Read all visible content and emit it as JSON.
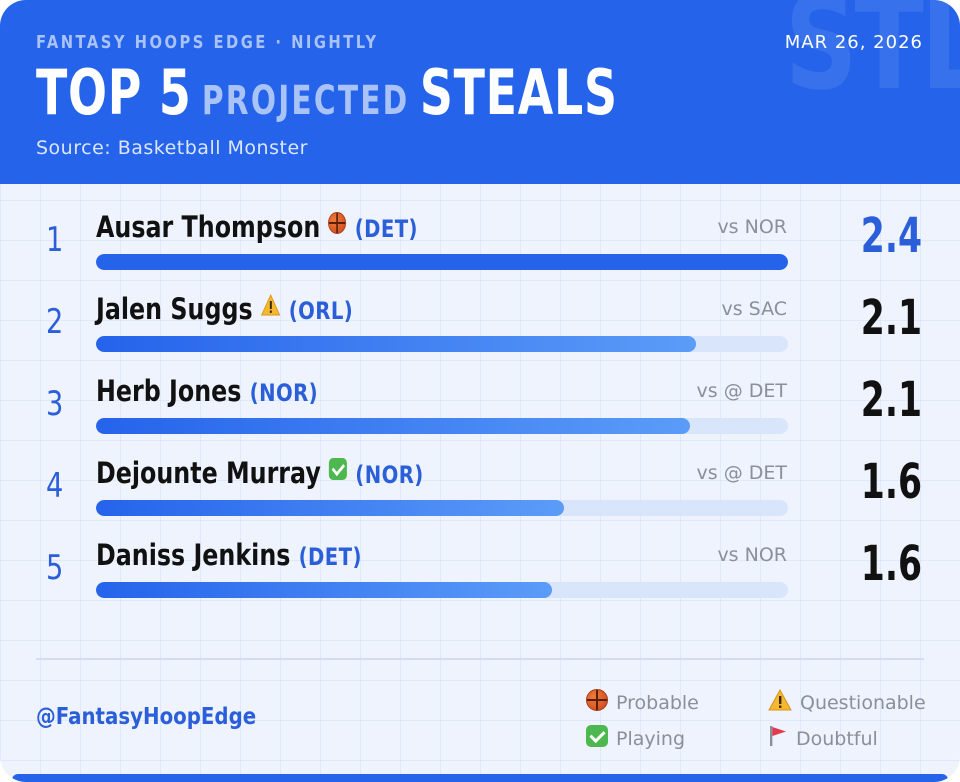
{
  "header": {
    "kicker": "FANTASY HOOPS EDGE · NIGHTLY",
    "date": "MAR 26, 2026",
    "title_part1": "TOP 5",
    "title_part2": "PROJECTED",
    "title_part3": "STEALS",
    "source": "Source: Basketball Monster",
    "watermark": "STL"
  },
  "scale_max": 2.4,
  "players": [
    {
      "rank": "1",
      "name": "Ausar Thompson",
      "status_icon": "basketball-icon",
      "team": "(DET)",
      "opponent": "vs NOR",
      "value": "2.4",
      "bar_fraction": 1.0
    },
    {
      "rank": "2",
      "name": "Jalen Suggs",
      "status_icon": "warning-icon",
      "team": "(ORL)",
      "opponent": "vs SAC",
      "value": "2.1",
      "bar_fraction": 0.867
    },
    {
      "rank": "3",
      "name": "Herb Jones",
      "status_icon": "",
      "team": "(NOR)",
      "opponent": "vs @ DET",
      "value": "2.1",
      "bar_fraction": 0.858
    },
    {
      "rank": "4",
      "name": "Dejounte Murray",
      "status_icon": "check-icon",
      "team": "(NOR)",
      "opponent": "vs @ DET",
      "value": "1.6",
      "bar_fraction": 0.676
    },
    {
      "rank": "5",
      "name": "Daniss Jenkins",
      "status_icon": "",
      "team": "(DET)",
      "opponent": "vs NOR",
      "value": "1.6",
      "bar_fraction": 0.659
    }
  ],
  "footer": {
    "handle": "@FantasyHoopEdge",
    "legend": {
      "probable": "Probable",
      "questionable": "Questionable",
      "playing": "Playing",
      "doubtful": "Doubtful"
    }
  },
  "colors": {
    "brand_blue": "#2563eb",
    "accent_text": "#2b5fd9",
    "bar_track": "#d9e5fb"
  }
}
